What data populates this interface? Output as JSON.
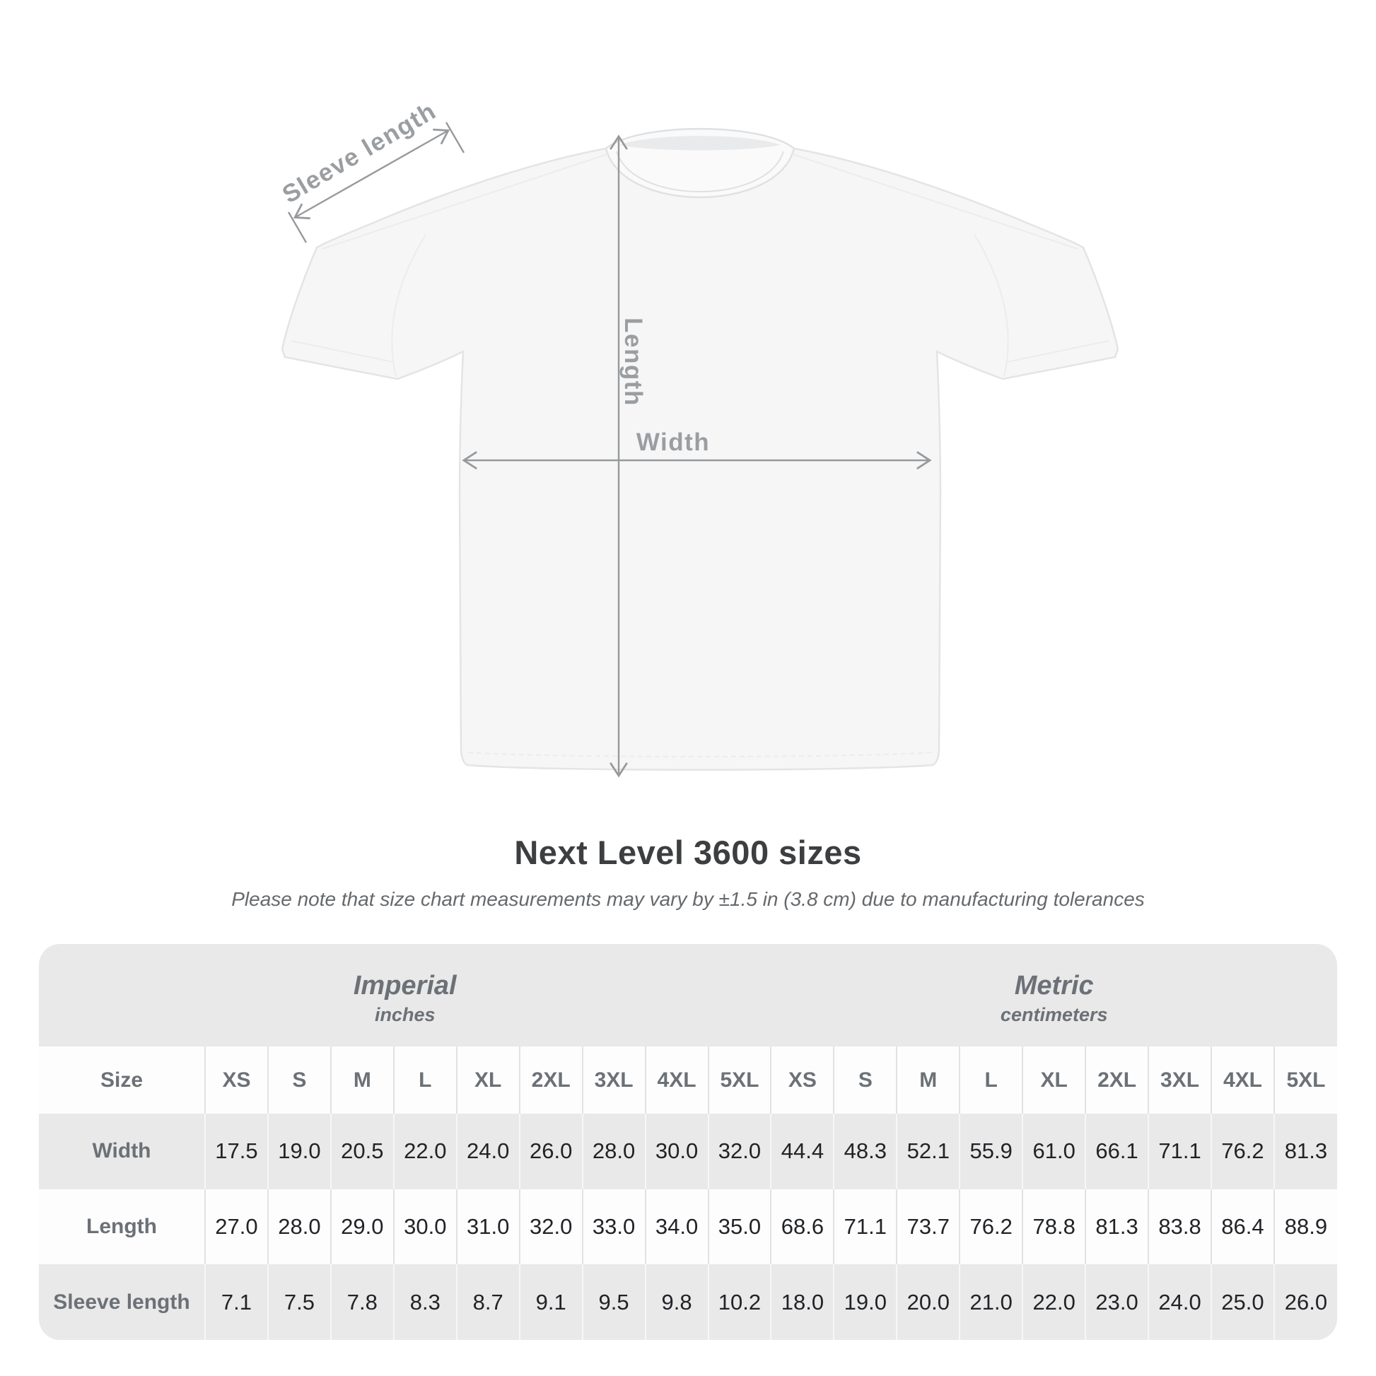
{
  "diagram": {
    "labels": {
      "sleeve_length": "Sleeve length",
      "length": "Length",
      "width": "Width"
    },
    "colors": {
      "annotation": "#97999b",
      "annotation_text": "#9b9ea1",
      "shirt_fill": "#f6f6f7",
      "shirt_outline": "#e3e4e6"
    }
  },
  "title": "Next Level 3600 sizes",
  "subtitle": "Please note that size chart measurements may vary by ±1.5 in (3.8 cm) due to manufacturing tolerances",
  "table": {
    "unit_groups": [
      {
        "label": "Imperial",
        "sublabel": "inches",
        "span": 10
      },
      {
        "label": "Metric",
        "sublabel": "centimeters",
        "span": 9
      }
    ],
    "size_column_header": "Size",
    "sizes": [
      "XS",
      "S",
      "M",
      "L",
      "XL",
      "2XL",
      "3XL",
      "4XL",
      "5XL"
    ],
    "rows": [
      {
        "label": "Width",
        "imperial": [
          "17.5",
          "19.0",
          "20.5",
          "22.0",
          "24.0",
          "26.0",
          "28.0",
          "30.0",
          "32.0"
        ],
        "metric": [
          "44.4",
          "48.3",
          "52.1",
          "55.9",
          "61.0",
          "66.1",
          "71.1",
          "76.2",
          "81.3"
        ]
      },
      {
        "label": "Length",
        "imperial": [
          "27.0",
          "28.0",
          "29.0",
          "30.0",
          "31.0",
          "32.0",
          "33.0",
          "34.0",
          "35.0"
        ],
        "metric": [
          "68.6",
          "71.1",
          "73.7",
          "76.2",
          "78.8",
          "81.3",
          "83.8",
          "86.4",
          "88.9"
        ]
      },
      {
        "label": "Sleeve length",
        "imperial": [
          "7.1",
          "7.5",
          "7.8",
          "8.3",
          "8.7",
          "9.1",
          "9.5",
          "9.8",
          "10.2"
        ],
        "metric": [
          "18.0",
          "19.0",
          "20.0",
          "21.0",
          "22.0",
          "23.0",
          "24.0",
          "25.0",
          "26.0"
        ]
      }
    ]
  }
}
